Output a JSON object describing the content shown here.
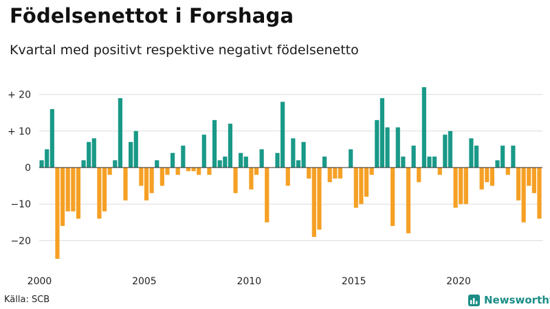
{
  "header": {
    "title": "Födelsenettot i Forshaga",
    "subtitle": "Kvartal med positivt respektive negativt födelsenetto"
  },
  "footer": {
    "source": "Källa: SCB",
    "brand": "Newsworthy",
    "brand_icon": "bar-chart-logo-icon",
    "brand_color": "#1b8d86"
  },
  "chart_data": {
    "type": "bar",
    "title": "Födelsenettot i Forshaga",
    "subtitle": "Kvartal med positivt respektive negativt födelsenetto",
    "xlabel": "",
    "ylabel": "",
    "ylim": [
      -28,
      22
    ],
    "grid": true,
    "legend": "none",
    "colors": {
      "positive": "#1a9988",
      "negative": "#f5a025"
    },
    "y_ticks": [
      {
        "value": 20,
        "label": "+ 20"
      },
      {
        "value": 10,
        "label": "+ 10"
      },
      {
        "value": 0,
        "label": "0"
      },
      {
        "value": -10,
        "label": "−10"
      },
      {
        "value": -20,
        "label": "−20"
      }
    ],
    "x_ticks": [
      {
        "value": 2000,
        "label": "2000"
      },
      {
        "value": 2005,
        "label": "2005"
      },
      {
        "value": 2010,
        "label": "2010"
      },
      {
        "value": 2015,
        "label": "2015"
      },
      {
        "value": 2020,
        "label": "2020"
      }
    ],
    "x_start": "2000 Q1",
    "x_end": "2023 Q4",
    "categories": [
      "2000 Q1",
      "2000 Q2",
      "2000 Q3",
      "2000 Q4",
      "2001 Q1",
      "2001 Q2",
      "2001 Q3",
      "2001 Q4",
      "2002 Q1",
      "2002 Q2",
      "2002 Q3",
      "2002 Q4",
      "2003 Q1",
      "2003 Q2",
      "2003 Q3",
      "2003 Q4",
      "2004 Q1",
      "2004 Q2",
      "2004 Q3",
      "2004 Q4",
      "2005 Q1",
      "2005 Q2",
      "2005 Q3",
      "2005 Q4",
      "2006 Q1",
      "2006 Q2",
      "2006 Q3",
      "2006 Q4",
      "2007 Q1",
      "2007 Q2",
      "2007 Q3",
      "2007 Q4",
      "2008 Q1",
      "2008 Q2",
      "2008 Q3",
      "2008 Q4",
      "2009 Q1",
      "2009 Q2",
      "2009 Q3",
      "2009 Q4",
      "2010 Q1",
      "2010 Q2",
      "2010 Q3",
      "2010 Q4",
      "2011 Q1",
      "2011 Q2",
      "2011 Q3",
      "2011 Q4",
      "2012 Q1",
      "2012 Q2",
      "2012 Q3",
      "2012 Q4",
      "2013 Q1",
      "2013 Q2",
      "2013 Q3",
      "2013 Q4",
      "2014 Q1",
      "2014 Q2",
      "2014 Q3",
      "2014 Q4",
      "2015 Q1",
      "2015 Q2",
      "2015 Q3",
      "2015 Q4",
      "2016 Q1",
      "2016 Q2",
      "2016 Q3",
      "2016 Q4",
      "2017 Q1",
      "2017 Q2",
      "2017 Q3",
      "2017 Q4",
      "2018 Q1",
      "2018 Q2",
      "2018 Q3",
      "2018 Q4",
      "2019 Q1",
      "2019 Q2",
      "2019 Q3",
      "2019 Q4",
      "2020 Q1",
      "2020 Q2",
      "2020 Q3",
      "2020 Q4",
      "2021 Q1",
      "2021 Q2",
      "2021 Q3",
      "2021 Q4",
      "2022 Q1",
      "2022 Q2",
      "2022 Q3",
      "2022 Q4",
      "2023 Q1",
      "2023 Q2",
      "2023 Q3",
      "2023 Q4"
    ],
    "values": [
      2,
      5,
      16,
      -25,
      -16,
      -12,
      -12,
      -14,
      2,
      7,
      8,
      -14,
      -12,
      -2,
      2,
      19,
      -9,
      7,
      10,
      -5,
      -9,
      -7,
      2,
      -5,
      -2,
      4,
      -2,
      6,
      -1,
      -1,
      -2,
      9,
      -2,
      13,
      2,
      3,
      12,
      -7,
      4,
      3,
      -6,
      -2,
      5,
      -15,
      0,
      4,
      18,
      -5,
      8,
      2,
      7,
      -3,
      -19,
      -17,
      3,
      -4,
      -3,
      -3,
      0,
      5,
      -11,
      -10,
      -8,
      -2,
      13,
      19,
      11,
      -16,
      11,
      3,
      -18,
      6,
      -4,
      22,
      3,
      3,
      -2,
      9,
      10,
      -11,
      -10,
      -10,
      8,
      6,
      -6,
      -4,
      -5,
      2,
      6,
      -2,
      6,
      -9,
      -15,
      -5,
      -7,
      -14
    ]
  }
}
